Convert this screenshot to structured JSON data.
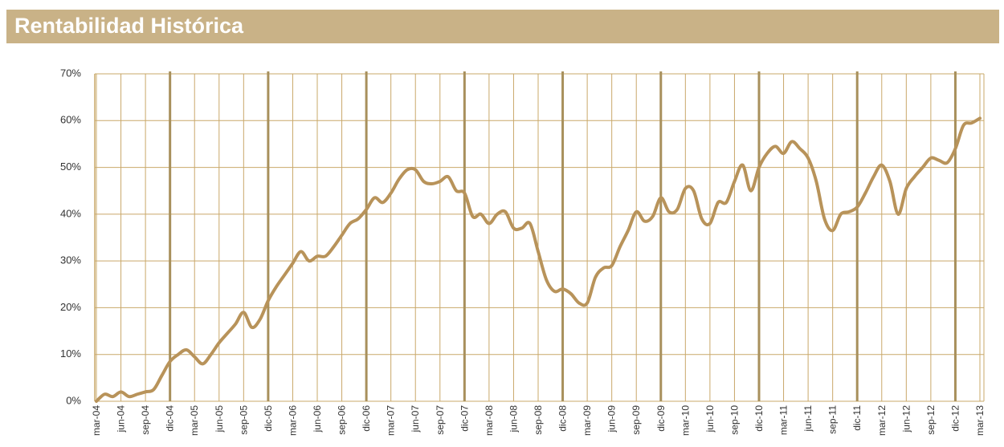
{
  "chart_data": {
    "type": "line",
    "title": "Rentabilidad Histórica",
    "categories": [
      "mar-04",
      null,
      null,
      "jun-04",
      null,
      null,
      "sep-04",
      null,
      null,
      "dic-04",
      null,
      null,
      "mar-05",
      null,
      null,
      "jun-05",
      null,
      null,
      "sep-05",
      null,
      null,
      "dic-05",
      null,
      null,
      "mar-06",
      null,
      null,
      "jun-06",
      null,
      null,
      "sep-06",
      null,
      null,
      "dic-06",
      null,
      null,
      "mar-07",
      null,
      null,
      "jun-07",
      null,
      null,
      "sep-07",
      null,
      null,
      "dic-07",
      null,
      null,
      "mar-08",
      null,
      null,
      "jun-08",
      null,
      null,
      "sep-08",
      null,
      null,
      "dic-08",
      null,
      null,
      "mar-09",
      null,
      null,
      "jun-09",
      null,
      null,
      "sep-09",
      null,
      null,
      "dic-09",
      null,
      null,
      "mar-10",
      null,
      null,
      "jun-10",
      null,
      null,
      "sep-10",
      null,
      null,
      "dic-10",
      null,
      null,
      "mar-11",
      null,
      null,
      "jun-11",
      null,
      null,
      "sep-11",
      null,
      null,
      "dic-11",
      null,
      null,
      "mar-12",
      null,
      null,
      "jun-12",
      null,
      null,
      "sep-12",
      null,
      null,
      "dic-12",
      null,
      null,
      "mar-13"
    ],
    "values": [
      0,
      1.5,
      1,
      2,
      1,
      1.5,
      2,
      2.5,
      5.5,
      8.5,
      10,
      11,
      9.5,
      8,
      10,
      12.5,
      14.5,
      16.5,
      19,
      15.8,
      17.5,
      21.5,
      24.5,
      27,
      29.5,
      32,
      30,
      31,
      31,
      33,
      35.5,
      38,
      39,
      41,
      43.5,
      42.5,
      44.5,
      47.5,
      49.5,
      49.5,
      47,
      46.5,
      47,
      48,
      45,
      44.5,
      39.5,
      40,
      38,
      40,
      40.5,
      37,
      37,
      38,
      32,
      26,
      23.5,
      24,
      23,
      21,
      21,
      26.5,
      28.5,
      29,
      33,
      36.5,
      40.5,
      38.5,
      39.5,
      43.5,
      40.5,
      41,
      45.5,
      45,
      39,
      38,
      42.5,
      42.5,
      47,
      50.5,
      45,
      50,
      53,
      54.5,
      53,
      55.5,
      54,
      52,
      47,
      39,
      36.5,
      40,
      40.5,
      41.5,
      44.5,
      48,
      50.5,
      47,
      40,
      45.5,
      48,
      50,
      52,
      51.5,
      51,
      54,
      59,
      59.5,
      60.5
    ],
    "color": "#b8935a",
    "ylim": [
      0,
      70
    ],
    "yticks": [
      {
        "value": 0,
        "label": "0%"
      },
      {
        "value": 10,
        "label": "10%"
      },
      {
        "value": 20,
        "label": "20%"
      },
      {
        "value": 30,
        "label": "30%"
      },
      {
        "value": 40,
        "label": "40%"
      },
      {
        "value": 50,
        "label": "50%"
      },
      {
        "value": 60,
        "label": "60%"
      },
      {
        "value": 70,
        "label": "70%"
      }
    ],
    "grid": true
  }
}
